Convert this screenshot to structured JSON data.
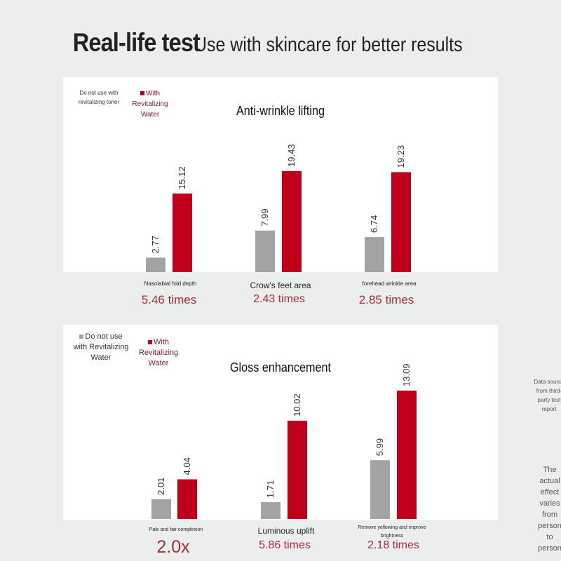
{
  "header": {
    "title_main": "Real-life test",
    "title_sub": "Use with skincare for better results"
  },
  "colors": {
    "grey_series": "#a3a3a3",
    "red_series": "#c0001a",
    "ratio_text": "#a52a3a",
    "background": "#eceeed",
    "panel": "#ffffff"
  },
  "chart_data": [
    {
      "type": "bar",
      "title": "Anti-wrinkle lifting",
      "categories": [
        "Nasolabial fold depth",
        "Crow's feet area",
        "forehead wrinkle area"
      ],
      "series": [
        {
          "name": "Do not use with revitalizing toner",
          "values": [
            2.77,
            7.99,
            6.74
          ]
        },
        {
          "name": "With Revitalizing Water",
          "values": [
            15.12,
            19.43,
            19.23
          ]
        }
      ],
      "value_labels": [
        [
          "2.77",
          "7.99",
          "6.74"
        ],
        [
          "15.12",
          "19.43",
          "19.23"
        ]
      ],
      "ratios": [
        "5.46 times",
        "2.43 times",
        "2.85 times"
      ],
      "ylim": [
        0,
        19.43
      ],
      "legend_position": "top-left",
      "grid": false
    },
    {
      "type": "bar",
      "title": "Gloss enhancement",
      "categories": [
        "Pale and fair complexion",
        "Luminous uplift",
        "Remove yellowing and improve brightness"
      ],
      "series": [
        {
          "name": "Do not use with Revitalizing Water",
          "values": [
            2.01,
            1.71,
            5.99
          ]
        },
        {
          "name": "With Revitalizing Water",
          "values": [
            4.04,
            10.02,
            13.09
          ]
        }
      ],
      "value_labels": [
        [
          "2.01",
          "1.71",
          "5.99"
        ],
        [
          "4.04",
          "10.02",
          "13.09"
        ]
      ],
      "ratios": [
        "2.0x",
        "5.86 times",
        "2.18 times"
      ],
      "ylim": [
        0,
        13.09
      ],
      "legend_position": "top-left",
      "grid": false
    }
  ],
  "notes": {
    "data_source": "Data source from third-party test report",
    "disclaimer": "The actual effect varies from person to person"
  }
}
